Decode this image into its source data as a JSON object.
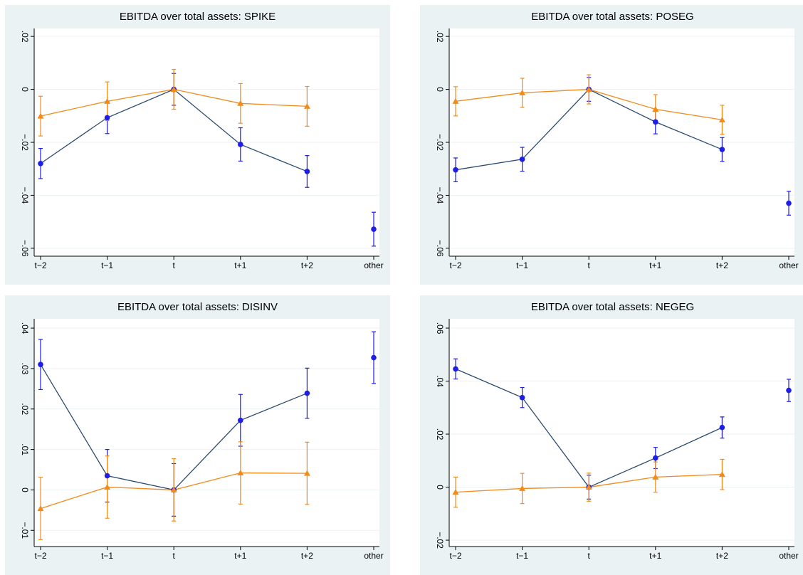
{
  "chart_data": [
    {
      "type": "line",
      "title": "EBITDA over total assets: SPIKE",
      "grid": true,
      "categories": [
        "t−2",
        "t−1",
        "t",
        "t+1",
        "t+2",
        "other"
      ],
      "ylim": [
        -0.063,
        0.023
      ],
      "yticks": [
        {
          "value": -0.06,
          "label": "−.06"
        },
        {
          "value": -0.04,
          "label": "−.04"
        },
        {
          "value": -0.02,
          "label": "−.02"
        },
        0,
        {
          "value": 0.02,
          "label": ".02"
        }
      ],
      "series": [
        {
          "color": "#1e1ee6",
          "line_color": "#2b4a70",
          "marker": "circle",
          "line": true,
          "values": [
            -0.028,
            -0.0107,
            0,
            -0.0208,
            -0.031,
            null
          ],
          "errors": [
            0.0057,
            0.006,
            0.006,
            0.0063,
            0.006,
            null
          ]
        },
        {
          "color": "#1e1ee6",
          "marker": "circle",
          "line": false,
          "values": [
            null,
            null,
            null,
            null,
            null,
            -0.0528
          ],
          "errors": [
            null,
            null,
            null,
            null,
            null,
            0.0064
          ]
        },
        {
          "color": "#f28b1a",
          "line_color": "#f28b1a",
          "marker": "triangle",
          "line": true,
          "values": [
            -0.0101,
            -0.0045,
            0,
            -0.0053,
            -0.0064,
            null
          ],
          "errors": [
            0.0075,
            0.0073,
            0.0075,
            0.0075,
            0.0075,
            null
          ]
        }
      ]
    },
    {
      "type": "line",
      "title": "EBITDA over total assets: POSEG",
      "grid": true,
      "categories": [
        "t−2",
        "t−1",
        "t",
        "t+1",
        "t+2",
        "other"
      ],
      "ylim": [
        -0.063,
        0.023
      ],
      "yticks": [
        {
          "value": -0.06,
          "label": "−.06"
        },
        {
          "value": -0.04,
          "label": "−.04"
        },
        {
          "value": -0.02,
          "label": "−.02"
        },
        0,
        {
          "value": 0.02,
          "label": ".02"
        }
      ],
      "series": [
        {
          "color": "#1e1ee6",
          "line_color": "#2b4a70",
          "marker": "circle",
          "line": true,
          "values": [
            -0.0304,
            -0.0264,
            0,
            -0.0123,
            -0.0227,
            null
          ],
          "errors": [
            0.0045,
            0.0045,
            0.0045,
            0.0045,
            0.0045,
            null
          ]
        },
        {
          "color": "#1e1ee6",
          "marker": "circle",
          "line": false,
          "values": [
            null,
            null,
            null,
            null,
            null,
            -0.043
          ],
          "errors": [
            null,
            null,
            null,
            null,
            null,
            0.0045
          ]
        },
        {
          "color": "#f28b1a",
          "line_color": "#f28b1a",
          "marker": "triangle",
          "line": true,
          "values": [
            -0.0045,
            -0.0013,
            0,
            -0.0075,
            -0.0115,
            null
          ],
          "errors": [
            0.0055,
            0.0055,
            0.0055,
            0.0055,
            0.0055,
            null
          ]
        }
      ]
    },
    {
      "type": "line",
      "title": "EBITDA over total assets: DISINV",
      "grid": true,
      "categories": [
        "t−2",
        "t−1",
        "t",
        "t+1",
        "t+2",
        "other"
      ],
      "ylim": [
        -0.014,
        0.0423
      ],
      "yticks": [
        {
          "value": -0.01,
          "label": "−.01"
        },
        0,
        {
          "value": 0.01,
          "label": ".01"
        },
        {
          "value": 0.02,
          "label": ".02"
        },
        {
          "value": 0.03,
          "label": ".03"
        },
        {
          "value": 0.04,
          "label": ".04"
        }
      ],
      "series": [
        {
          "color": "#1e1ee6",
          "line_color": "#2b4a70",
          "marker": "circle",
          "line": true,
          "values": [
            0.031,
            0.0035,
            0,
            0.0172,
            0.0239,
            null
          ],
          "errors": [
            0.0062,
            0.0065,
            0.0065,
            0.0064,
            0.0062,
            null
          ]
        },
        {
          "color": "#1e1ee6",
          "marker": "circle",
          "line": false,
          "values": [
            null,
            null,
            null,
            null,
            null,
            0.0327
          ],
          "errors": [
            null,
            null,
            null,
            null,
            null,
            0.0064
          ]
        },
        {
          "color": "#f28b1a",
          "line_color": "#f28b1a",
          "marker": "triangle",
          "line": true,
          "values": [
            -0.0046,
            0.0007,
            0,
            0.0042,
            0.0041,
            null
          ],
          "errors": [
            0.0077,
            0.0077,
            0.0077,
            0.0077,
            0.0077,
            null
          ]
        }
      ]
    },
    {
      "type": "line",
      "title": "EBITDA over total assets: NEGEG",
      "grid": true,
      "categories": [
        "t−2",
        "t−1",
        "t",
        "t+1",
        "t+2",
        "other"
      ],
      "ylim": [
        -0.0224,
        0.0635
      ],
      "yticks": [
        {
          "value": -0.02,
          "label": "−.02"
        },
        0,
        {
          "value": 0.02,
          "label": ".02"
        },
        {
          "value": 0.04,
          "label": ".04"
        },
        {
          "value": 0.06,
          "label": ".06"
        }
      ],
      "series": [
        {
          "color": "#1e1ee6",
          "line_color": "#2b4a70",
          "marker": "circle",
          "line": true,
          "values": [
            0.0446,
            0.0338,
            0,
            0.011,
            0.0225,
            null
          ],
          "errors": [
            0.0038,
            0.0038,
            0.0045,
            0.004,
            0.004,
            null
          ]
        },
        {
          "color": "#1e1ee6",
          "marker": "circle",
          "line": false,
          "values": [
            null,
            null,
            null,
            null,
            null,
            0.0365
          ],
          "errors": [
            null,
            null,
            null,
            null,
            null,
            0.0042
          ]
        },
        {
          "color": "#f28b1a",
          "line_color": "#f28b1a",
          "marker": "triangle",
          "line": true,
          "values": [
            -0.0019,
            -0.0005,
            0,
            0.0038,
            0.0048,
            null
          ],
          "errors": [
            0.0057,
            0.0057,
            0.0053,
            0.0057,
            0.0057,
            null
          ]
        }
      ]
    }
  ]
}
